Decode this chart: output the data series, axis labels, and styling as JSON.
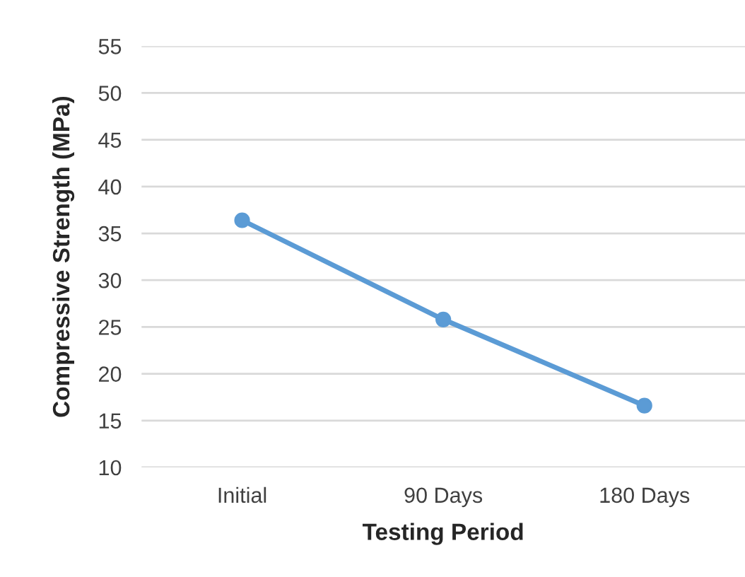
{
  "chart_data": {
    "type": "line",
    "xlabel": "Testing Period",
    "ylabel": "Compressive Strength (MPa)",
    "categories": [
      "Initial",
      "90 Days",
      "180 Days"
    ],
    "series": [
      {
        "color": "#5b9bd5",
        "values": [
          36.4,
          25.8,
          16.6
        ]
      }
    ],
    "ylim": [
      10,
      55
    ],
    "yticks": [
      10,
      15,
      20,
      25,
      30,
      35,
      40,
      45,
      50,
      55
    ],
    "grid": "y",
    "marker": "circle",
    "line_style": "solid"
  }
}
